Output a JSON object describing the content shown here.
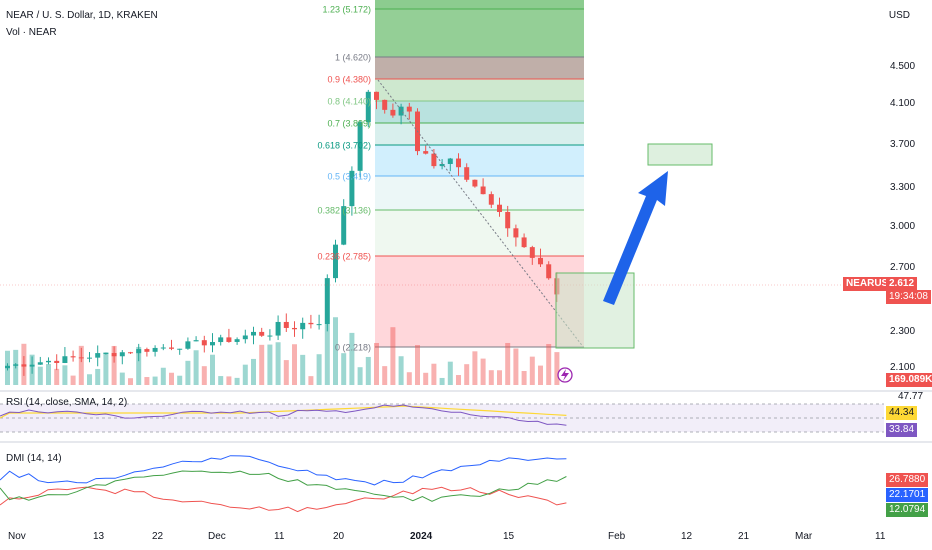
{
  "header": {
    "symbol_line": "NEAR / U. S. Dollar, 1D, KRAKEN",
    "volume_label": "Vol · NEAR",
    "currency": "USD"
  },
  "colors": {
    "up": "#26a69a",
    "down": "#ef5350",
    "accent": "#2962ff",
    "rsi_line": "#7e57c2",
    "rsi_ma": "#fdd835",
    "dmi_plus": "#2962ff",
    "dmi_minus": "#ef5350",
    "adx": "#43a047"
  },
  "price_axis": {
    "ticks": [
      "4.500",
      "4.100",
      "3.700",
      "3.300",
      "3.000",
      "2.700",
      "2.300",
      "2.100"
    ]
  },
  "price_tag": {
    "symbol": "NEARUSD",
    "price": "2.612",
    "countdown": "19:34:08",
    "volume": "169.089K"
  },
  "date_axis": {
    "ticks": [
      "Nov",
      "13",
      "22",
      "Dec",
      "11",
      "20",
      "2024",
      "15",
      "Feb",
      "12",
      "21",
      "Mar",
      "11"
    ]
  },
  "fib_levels": [
    {
      "label": "1.23 (5.172)",
      "price": 5.172
    },
    {
      "label": "1 (4.620)",
      "price": 4.62
    },
    {
      "label": "0.9 (4.380)",
      "price": 4.38
    },
    {
      "label": "0.8 (4.140)",
      "price": 4.14
    },
    {
      "label": "0.7 (3.899)",
      "price": 3.899
    },
    {
      "label": "0.618 (3.702)",
      "price": 3.702
    },
    {
      "label": "0.5 (3.419)",
      "price": 3.419
    },
    {
      "label": "0.382 (3.136)",
      "price": 3.136
    },
    {
      "label": "0.236 (2.785)",
      "price": 2.785
    },
    {
      "label": "0 (2.218)",
      "price": 2.218
    }
  ],
  "rsi": {
    "title": "RSI (14, close, SMA, 14, 2)",
    "values": [
      "47.77",
      "44.34",
      "33.84"
    ]
  },
  "dmi": {
    "title": "DMI (14, 14)",
    "values": [
      "26.7880",
      "22.1701",
      "12.0794"
    ]
  }
}
